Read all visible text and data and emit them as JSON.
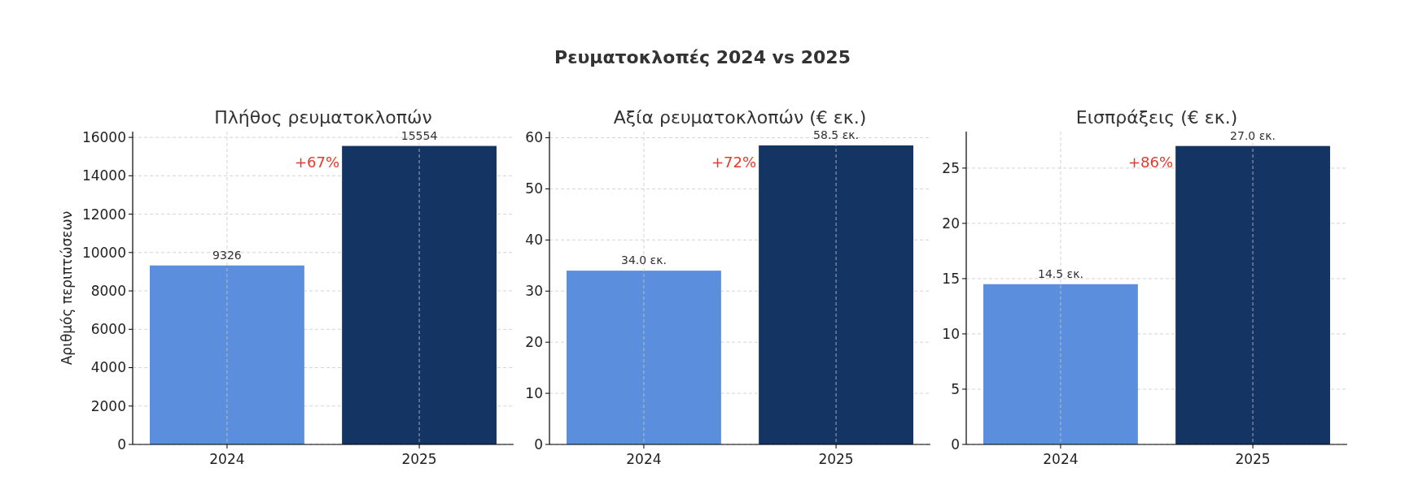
{
  "chart_data": [
    {
      "type": "other",
      "title": "Ρευματοκλοπές 2024 vs 2025"
    },
    {
      "type": "bar",
      "title": "Πλήθος ρευματοκλοπών",
      "ylabel": "Αριθμός περιπτώσεων",
      "categories": [
        "2024",
        "2025"
      ],
      "values": [
        9326,
        15554
      ],
      "colors": [
        "#5b8fde",
        "#143463"
      ],
      "data_labels": true,
      "ylim": [
        0,
        16300
      ],
      "yticks": [
        0,
        2000,
        4000,
        6000,
        8000,
        10000,
        12000,
        14000,
        16000
      ],
      "grid": true,
      "annotations": [
        "+67%"
      ]
    },
    {
      "type": "bar",
      "title": "Αξία ρευματοκλοπών (€ εκ.)",
      "categories": [
        "2024",
        "2025"
      ],
      "values": [
        34.0,
        58.5
      ],
      "value_labels": [
        "34.0 εκ.",
        "58.5 εκ."
      ],
      "colors": [
        "#5b8fde",
        "#143463"
      ],
      "ylim": [
        0,
        61.2
      ],
      "yticks": [
        0,
        10,
        20,
        30,
        40,
        50,
        60
      ],
      "grid": true,
      "annotations": [
        "+72%"
      ]
    },
    {
      "type": "bar",
      "title": "Εισπράξεις (€ εκ.)",
      "categories": [
        "2024",
        "2025"
      ],
      "values": [
        14.5,
        27.0
      ],
      "value_labels": [
        "14.5 εκ.",
        "27.0 εκ."
      ],
      "colors": [
        "#5b8fde",
        "#143463"
      ],
      "ylim": [
        0,
        28.3
      ],
      "yticks": [
        0,
        5,
        10,
        15,
        20,
        25
      ],
      "grid": true,
      "annotations": [
        "+86%"
      ]
    }
  ]
}
